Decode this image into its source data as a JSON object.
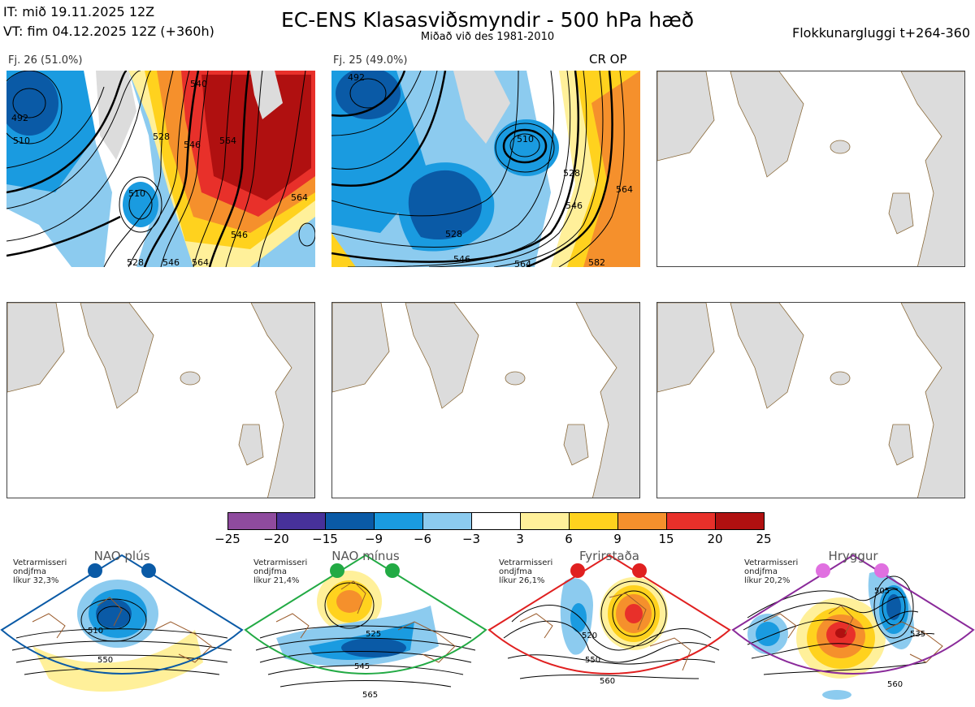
{
  "header": {
    "it_line": "IT: mið 19.11.2025 12Z",
    "vt_line": "VT: fim 04.12.2025 12Z  (+360h)",
    "title": "EC-ENS Klasasviðsmyndir - 500 hPa hæð",
    "subtitle": "Miðað við des 1981-2010",
    "window": "Flokkunargluggi t+264-360"
  },
  "clusters": [
    {
      "label": "Fj. 26 (51.0%)",
      "frame_color": "#e02020",
      "contour_labels": [
        "492",
        "510",
        "528",
        "546",
        "540",
        "564",
        "510",
        "528",
        "546",
        "564",
        "564",
        "546"
      ]
    },
    {
      "label": "Fj. 25 (49.0%)",
      "frame_color": "#0a5aa6",
      "tag": "CR OP",
      "contour_labels": [
        "492",
        "510",
        "528",
        "528",
        "546",
        "546",
        "564",
        "564",
        "582"
      ]
    }
  ],
  "colorbar": {
    "colors": [
      "#8f4b9e",
      "#47319a",
      "#0a5aa6",
      "#1a9be0",
      "#8ccbef",
      "#ffffff",
      "#fff09a",
      "#ffd21e",
      "#f5902c",
      "#e8302a",
      "#b01010"
    ],
    "ticks": [
      "−25",
      "−20",
      "−15",
      "−9",
      "−6",
      "−3",
      "3",
      "6",
      "9",
      "15",
      "20",
      "25"
    ]
  },
  "regimes": [
    {
      "name": "NAO plús",
      "caption": [
        "Vetrarmisseri",
        "ondjfma",
        "líkur 32,3%"
      ],
      "color": "#0a5aa6",
      "contour_labels": [
        "510",
        "550"
      ]
    },
    {
      "name": "NAO mínus",
      "caption": [
        "Vetrarmisseri",
        "ondjfma",
        "líkur 21,4%"
      ],
      "color": "#22aa44",
      "contour_labels": [
        "525",
        "545",
        "565"
      ]
    },
    {
      "name": "Fyrirstaða",
      "caption": [
        "Vetrarmisseri",
        "ondjfma",
        "líkur 26,1%"
      ],
      "color": "#e02020",
      "contour_labels": [
        "520",
        "550",
        "560"
      ]
    },
    {
      "name": "Hryggur",
      "caption": [
        "Vetrarmisseri",
        "ondjfma",
        "líkur 20,2%"
      ],
      "color": "#e070e0",
      "contour_labels": [
        "505",
        "535",
        "560"
      ]
    }
  ],
  "map": {
    "land_color": "#dcdcdc",
    "coast_color": "#8a6a3a"
  }
}
